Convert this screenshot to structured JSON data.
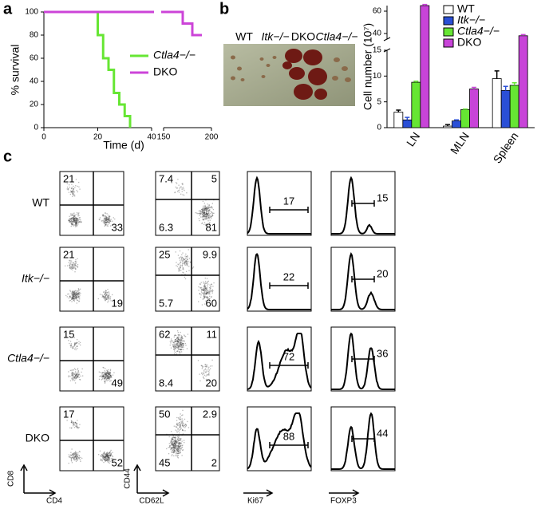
{
  "chart_data": [
    {
      "type": "line",
      "panel": "a",
      "xlabel": "Time (d)",
      "ylabel": "% survival",
      "xlim": [
        0,
        200
      ],
      "x_break": [
        40,
        150
      ],
      "xticks": [
        0,
        20,
        40,
        150,
        200
      ],
      "ylim": [
        0,
        100
      ],
      "yticks": [
        0,
        20,
        40,
        60,
        80,
        100
      ],
      "legend": "upper right",
      "series": [
        {
          "name": "Ctla4−/−",
          "color": "#66e633",
          "x": [
            0,
            20,
            22,
            24,
            26,
            28,
            30,
            32
          ],
          "values": [
            100,
            80,
            60,
            50,
            30,
            20,
            10,
            0
          ]
        },
        {
          "name": "DKO",
          "color": "#cc44d8",
          "x": [
            0,
            170,
            180,
            190
          ],
          "values": [
            100,
            90,
            80,
            80
          ]
        }
      ]
    },
    {
      "type": "bar",
      "panel": "b",
      "ylabel": "Cell number (10⁷)",
      "photo_labels": [
        "WT",
        "Itk−/−",
        "DKO",
        "Ctla4−/−"
      ],
      "categories": [
        "LN",
        "MLN",
        "Spleen"
      ],
      "ylim": [
        0,
        65
      ],
      "y_break": [
        15,
        35
      ],
      "yticks": [
        0,
        5,
        10,
        15,
        40,
        60
      ],
      "legend": "upper right",
      "series": [
        {
          "name": "WT",
          "color": "#ffffff",
          "values": [
            3,
            0.3,
            9.5
          ],
          "errors": [
            0.4,
            0.3,
            1.5
          ]
        },
        {
          "name": "Itk−/−",
          "color": "#2a4fd6",
          "values": [
            1.5,
            1.3,
            7.2
          ],
          "errors": [
            0.5,
            0.2,
            0.8
          ]
        },
        {
          "name": "Ctla4−/−",
          "color": "#66e633",
          "values": [
            8.8,
            3.5,
            8.2
          ],
          "errors": [
            0.2,
            0.1,
            0.5
          ]
        },
        {
          "name": "DKO",
          "color": "#c844d8",
          "values": [
            65,
            7.5,
            38
          ],
          "errors": [
            1,
            0.3,
            1
          ]
        }
      ]
    }
  ],
  "flow": {
    "panel": "c",
    "row_labels": [
      "WT",
      "Itk−/−",
      "Ctla4−/−",
      "DKO"
    ],
    "x_axis_labels": [
      "CD4",
      "CD62L",
      "Ki67",
      "FOXP3"
    ],
    "y_axis_labels": [
      "CD8",
      "CD44"
    ],
    "rows": [
      {
        "cd8_cd4": [
          21,
          33
        ],
        "cd44_cd62l": [
          7.4,
          5,
          6.3,
          81
        ],
        "ki67": 17,
        "foxp3": 15
      },
      {
        "cd8_cd4": [
          21,
          19
        ],
        "cd44_cd62l": [
          25,
          9.9,
          5.7,
          60
        ],
        "ki67": 22,
        "foxp3": 20
      },
      {
        "cd8_cd4": [
          15,
          49
        ],
        "cd44_cd62l": [
          62,
          11,
          8.4,
          20
        ],
        "ki67": 72,
        "foxp3": 36
      },
      {
        "cd8_cd4": [
          17,
          52
        ],
        "cd44_cd62l": [
          50,
          2.9,
          45,
          2
        ],
        "ki67": 88,
        "foxp3": 44
      }
    ]
  }
}
